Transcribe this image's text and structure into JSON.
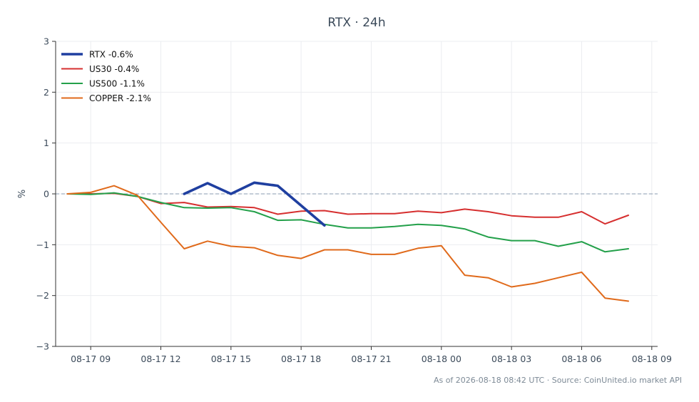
{
  "chart_data": {
    "type": "line",
    "title": "RTX · 24h",
    "ylabel": "%",
    "xlabel": "",
    "ylim": [
      -3,
      3
    ],
    "xlim": [
      "2026-08-17 07:30",
      "2026-08-18 09:15"
    ],
    "yticks": [
      3,
      2,
      1,
      0,
      -1,
      -2,
      -3
    ],
    "yticklabels": [
      "3",
      "2",
      "1",
      "0",
      "−1",
      "−2",
      "−3"
    ],
    "xticks": [
      "2026-08-17 09:00",
      "2026-08-17 12:00",
      "2026-08-17 15:00",
      "2026-08-17 18:00",
      "2026-08-17 21:00",
      "2026-08-18 00:00",
      "2026-08-18 03:00",
      "2026-08-18 06:00",
      "2026-08-18 09:00"
    ],
    "xticklabels": [
      "08-17 09",
      "08-17 12",
      "08-17 15",
      "08-17 18",
      "08-17 21",
      "08-18 00",
      "08-18 03",
      "08-18 06",
      "08-18 09"
    ],
    "grid": true,
    "zero_line": true,
    "legend_position": "top-left",
    "series": [
      {
        "name": "RTX -0.6%",
        "color": "#1f3fa0",
        "emphasis": true,
        "x": [
          "2026-08-17 13:00",
          "2026-08-17 14:00",
          "2026-08-17 15:00",
          "2026-08-17 16:00",
          "2026-08-17 17:00",
          "2026-08-17 18:00",
          "2026-08-17 19:00"
        ],
        "y": [
          0.0,
          0.21,
          0.0,
          0.22,
          0.16,
          -0.23,
          -0.62
        ]
      },
      {
        "name": "US30 -0.4%",
        "color": "#d62f2f",
        "x": [
          "2026-08-17 08:00",
          "2026-08-17 09:00",
          "2026-08-17 10:00",
          "2026-08-17 11:00",
          "2026-08-17 12:00",
          "2026-08-17 13:00",
          "2026-08-17 14:00",
          "2026-08-17 15:00",
          "2026-08-17 16:00",
          "2026-08-17 17:00",
          "2026-08-17 18:00",
          "2026-08-17 19:00",
          "2026-08-17 20:00",
          "2026-08-17 21:00",
          "2026-08-17 22:00",
          "2026-08-17 23:00",
          "2026-08-18 00:00",
          "2026-08-18 01:00",
          "2026-08-18 02:00",
          "2026-08-18 03:00",
          "2026-08-18 04:00",
          "2026-08-18 05:00",
          "2026-08-18 06:00",
          "2026-08-18 07:00",
          "2026-08-18 08:00"
        ],
        "y": [
          0.0,
          0.0,
          0.01,
          -0.05,
          -0.19,
          -0.17,
          -0.26,
          -0.25,
          -0.27,
          -0.4,
          -0.34,
          -0.33,
          -0.4,
          -0.39,
          -0.39,
          -0.34,
          -0.37,
          -0.3,
          -0.35,
          -0.43,
          -0.46,
          -0.46,
          -0.35,
          -0.59,
          -0.42
        ]
      },
      {
        "name": "US500 -1.1%",
        "color": "#23a04a",
        "x": [
          "2026-08-17 08:00",
          "2026-08-17 09:00",
          "2026-08-17 10:00",
          "2026-08-17 11:00",
          "2026-08-17 12:00",
          "2026-08-17 13:00",
          "2026-08-17 14:00",
          "2026-08-17 15:00",
          "2026-08-17 16:00",
          "2026-08-17 17:00",
          "2026-08-17 18:00",
          "2026-08-17 19:00",
          "2026-08-17 20:00",
          "2026-08-17 21:00",
          "2026-08-17 22:00",
          "2026-08-17 23:00",
          "2026-08-18 00:00",
          "2026-08-18 01:00",
          "2026-08-18 02:00",
          "2026-08-18 03:00",
          "2026-08-18 04:00",
          "2026-08-18 05:00",
          "2026-08-18 06:00",
          "2026-08-18 07:00",
          "2026-08-18 08:00"
        ],
        "y": [
          0.0,
          -0.01,
          0.02,
          -0.05,
          -0.17,
          -0.27,
          -0.28,
          -0.27,
          -0.35,
          -0.52,
          -0.51,
          -0.6,
          -0.67,
          -0.67,
          -0.64,
          -0.6,
          -0.62,
          -0.69,
          -0.85,
          -0.92,
          -0.92,
          -1.03,
          -0.94,
          -1.14,
          -1.08
        ]
      },
      {
        "name": "COPPER -2.1%",
        "color": "#e06a1b",
        "x": [
          "2026-08-17 08:00",
          "2026-08-17 09:00",
          "2026-08-17 10:00",
          "2026-08-17 11:00",
          "2026-08-17 12:00",
          "2026-08-17 13:00",
          "2026-08-17 14:00",
          "2026-08-17 15:00",
          "2026-08-17 16:00",
          "2026-08-17 17:00",
          "2026-08-17 18:00",
          "2026-08-17 19:00",
          "2026-08-17 20:00",
          "2026-08-17 21:00",
          "2026-08-17 22:00",
          "2026-08-17 23:00",
          "2026-08-18 00:00",
          "2026-08-18 01:00",
          "2026-08-18 02:00",
          "2026-08-18 03:00",
          "2026-08-18 04:00",
          "2026-08-18 05:00",
          "2026-08-18 06:00",
          "2026-08-18 07:00",
          "2026-08-18 08:00"
        ],
        "y": [
          0.0,
          0.03,
          0.16,
          -0.03,
          -0.56,
          -1.08,
          -0.93,
          -1.03,
          -1.06,
          -1.21,
          -1.27,
          -1.1,
          -1.1,
          -1.19,
          -1.19,
          -1.07,
          -1.02,
          -1.6,
          -1.65,
          -1.83,
          -1.76,
          -1.65,
          -1.54,
          -2.05,
          -2.11
        ]
      }
    ]
  },
  "footer": "As of 2026-08-18 08:42 UTC · Source: CoinUnited.io market API"
}
